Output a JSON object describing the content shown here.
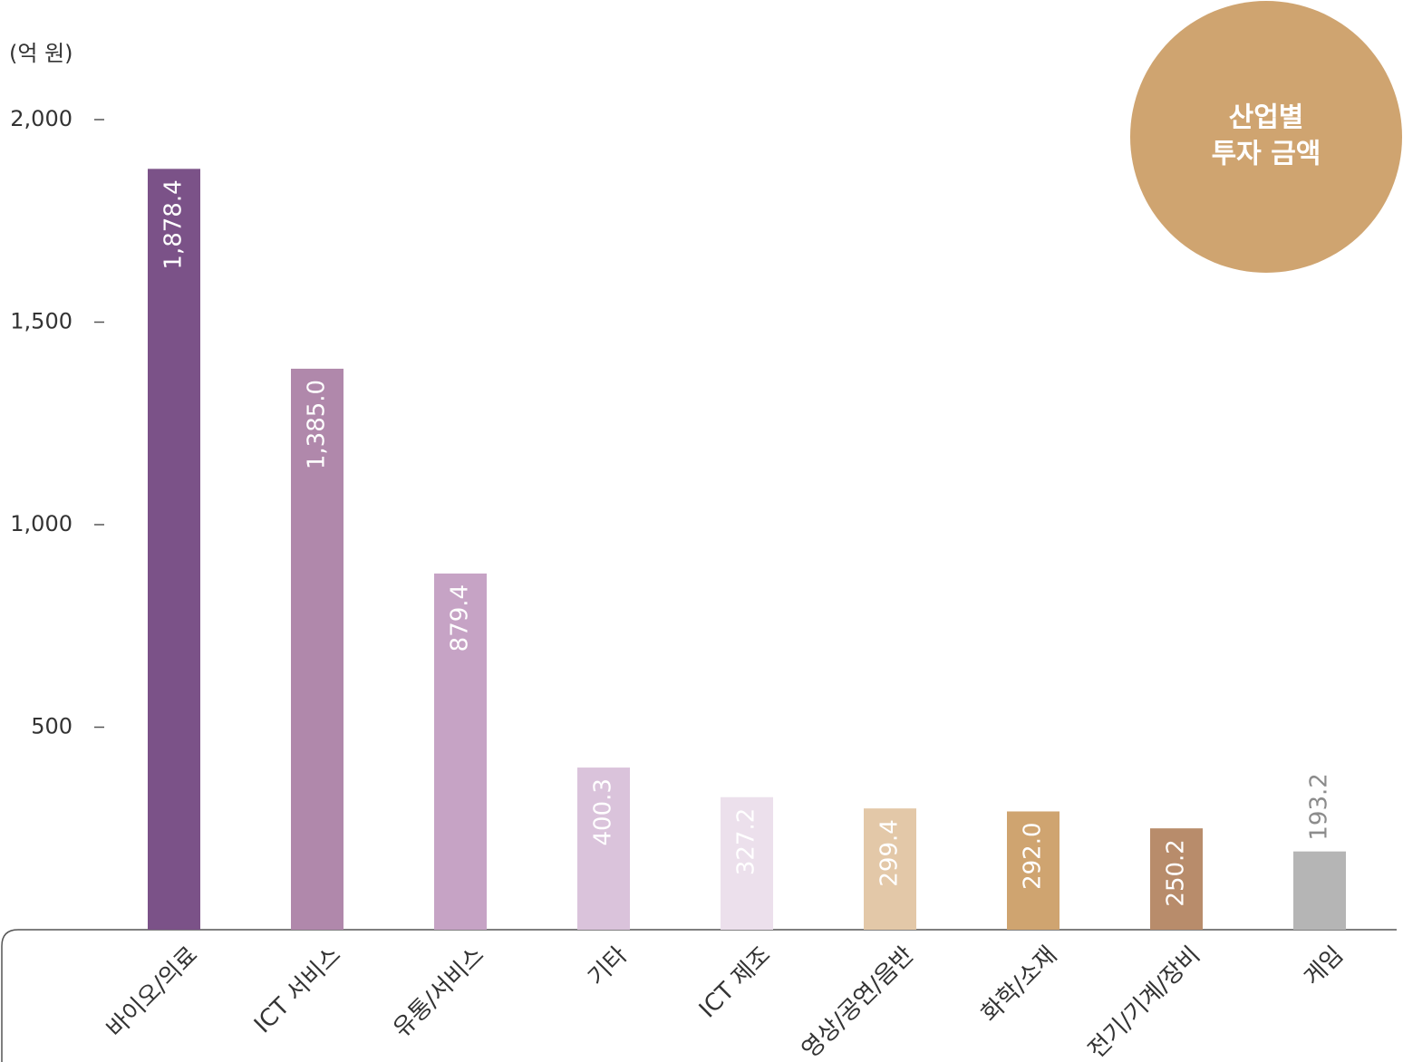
{
  "chart_data": {
    "type": "bar",
    "title": [
      "산업별",
      "투자 금액"
    ],
    "unit_label": "(억 원)",
    "categories": [
      "바이오/의료",
      "ICT 서비스",
      "유통/서비스",
      "기타",
      "ICT 제조",
      "영상/공연/음반",
      "화학/소재",
      "전기/기계/장비",
      "게임"
    ],
    "values": [
      1878.4,
      1385,
      879.4,
      400.3,
      327.2,
      299.4,
      292,
      250.2,
      193.2
    ],
    "value_labels": [
      "1,878.4",
      "1,385.0",
      "879.4",
      "400.3",
      "327.2",
      "299.4",
      "292.0",
      "250.2",
      "193.2"
    ],
    "colors": [
      "#7b5288",
      "#b088ab",
      "#c6a3c5",
      "#dac3db",
      "#ece0ec",
      "#e3c8a8",
      "#cfa470",
      "#b88c6b",
      "#b5b5b5"
    ],
    "value_label_colors": [
      "#ffffff",
      "#ffffff",
      "#ffffff",
      "#ffffff",
      "#ffffff",
      "#ffffff",
      "#ffffff",
      "#ffffff",
      "#8c8c8c"
    ],
    "value_label_positions": [
      "inside",
      "inside",
      "inside",
      "inside",
      "inside",
      "inside",
      "inside",
      "inside",
      "outside"
    ],
    "ylim": [
      0,
      2000
    ],
    "yticks": [
      500,
      {
        "value": 1000,
        "label": "1,000"
      },
      {
        "value": 1500,
        "label": "1,500"
      },
      {
        "value": 2000,
        "label": "2,000"
      }
    ],
    "grid": false,
    "badge_color": "#cfa470"
  }
}
